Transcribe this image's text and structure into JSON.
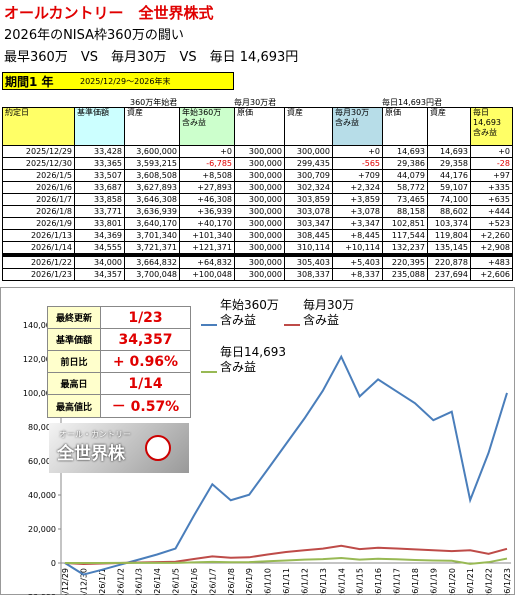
{
  "header": {
    "title": "オールカントリー　全世界株式",
    "subtitle": "2026年のNISA枠360万の闘い",
    "matchup": "最早360万　VS　毎月30万　VS　毎日 14,693円",
    "period_label": "期間1 年",
    "period": "2025/12/29～2026年末"
  },
  "table": {
    "groups": [
      "360万年始君",
      "毎月30万君",
      "毎日14,693円君"
    ],
    "columns": [
      "約定日",
      "基準価額",
      "資産",
      "年始360万\n含み益",
      "原価",
      "資産",
      "毎月30万\n含み益",
      "原価",
      "資産",
      "毎日\n14,693\n含み益"
    ],
    "rows": [
      [
        "2025/12/29",
        "33,428",
        "3,600,000",
        "+0",
        "300,000",
        "300,000",
        "+0",
        "14,693",
        "14,693",
        "+0"
      ],
      [
        "2025/12/30",
        "33,365",
        "3,593,215",
        "-6,785",
        "300,000",
        "299,435",
        "-565",
        "29,386",
        "29,358",
        "-28"
      ],
      [
        "2026/1/5",
        "33,507",
        "3,608,508",
        "+8,508",
        "300,000",
        "300,709",
        "+709",
        "44,079",
        "44,176",
        "+97"
      ],
      [
        "2026/1/6",
        "33,687",
        "3,627,893",
        "+27,893",
        "300,000",
        "302,324",
        "+2,324",
        "58,772",
        "59,107",
        "+335"
      ],
      [
        "2026/1/7",
        "33,858",
        "3,646,308",
        "+46,308",
        "300,000",
        "303,859",
        "+3,859",
        "73,465",
        "74,100",
        "+635"
      ],
      [
        "2026/1/8",
        "33,771",
        "3,636,939",
        "+36,939",
        "300,000",
        "303,078",
        "+3,078",
        "88,158",
        "88,602",
        "+444"
      ],
      [
        "2026/1/9",
        "33,801",
        "3,640,170",
        "+40,170",
        "300,000",
        "303,347",
        "+3,347",
        "102,851",
        "103,374",
        "+523"
      ],
      [
        "2026/1/13",
        "34,369",
        "3,701,340",
        "+101,340",
        "300,000",
        "308,445",
        "+8,445",
        "117,544",
        "119,804",
        "+2,260"
      ],
      [
        "2026/1/14",
        "34,555",
        "3,721,371",
        "+121,371",
        "300,000",
        "310,114",
        "+10,114",
        "132,237",
        "135,145",
        "+2,908"
      ],
      [
        "2026/1/22",
        "34,000",
        "3,664,832",
        "+64,832",
        "300,000",
        "305,403",
        "+5,403",
        "220,395",
        "220,878",
        "+483"
      ],
      [
        "2026/1/23",
        "34,357",
        "3,700,048",
        "+100,048",
        "300,000",
        "308,337",
        "+8,337",
        "235,088",
        "237,694",
        "+2,606"
      ]
    ]
  },
  "info": {
    "rows": [
      [
        "最終更新",
        "1/23"
      ],
      [
        "基準価額",
        "34,357"
      ],
      [
        "前日比",
        "+ 0.96%"
      ],
      [
        "最高日",
        "1/14"
      ],
      [
        "最高値比",
        "－ 0.57%"
      ]
    ]
  },
  "logo": {
    "line1": "オール・カントリー",
    "line2": "全世界株"
  },
  "chart_data": {
    "type": "line",
    "categories": [
      "2025/12/29",
      "2025/12/30",
      "2026/1/1",
      "2026/1/2",
      "2026/1/3",
      "2026/1/4",
      "2026/1/5",
      "2026/1/6",
      "2026/1/7",
      "2026/1/8",
      "2026/1/9",
      "2026/1/10",
      "2026/1/11",
      "2026/1/12",
      "2026/1/13",
      "2026/1/14",
      "2026/1/15",
      "2026/1/16",
      "2026/1/17",
      "2026/1/18",
      "2026/1/19",
      "2026/1/20",
      "2026/1/21",
      "2026/1/22",
      "2026/1/23"
    ],
    "series": [
      {
        "name": "年始360万\n含み益",
        "color": "#4a7ebb",
        "values": [
          0,
          -6785,
          -4000,
          -1000,
          2000,
          5000,
          8508,
          27893,
          46308,
          36939,
          40170,
          55000,
          70000,
          85000,
          101340,
          121371,
          98000,
          108000,
          101000,
          94000,
          84000,
          89000,
          37000,
          64832,
          100048
        ]
      },
      {
        "name": "毎月30万\n含み益",
        "color": "#be4b48",
        "values": [
          0,
          -565,
          -300,
          0,
          300,
          500,
          709,
          2324,
          3859,
          3078,
          3347,
          5000,
          6500,
          7500,
          8445,
          10114,
          8200,
          9000,
          8500,
          8000,
          7500,
          7000,
          7500,
          5403,
          8337
        ]
      },
      {
        "name": "毎日14,693\n含み益",
        "color": "#98b954",
        "values": [
          0,
          -28,
          0,
          50,
          80,
          90,
          97,
          335,
          635,
          444,
          523,
          1000,
          1500,
          2000,
          2260,
          2908,
          2000,
          2500,
          2200,
          1800,
          1500,
          1300,
          -500,
          483,
          2606
        ]
      }
    ],
    "ylim": [
      -20000,
      140000
    ],
    "yticks": [
      {
        "value": -20000,
        "label": "-20,000"
      },
      0,
      {
        "value": 20000,
        "label": "20,000"
      },
      {
        "value": 40000,
        "label": "40,000"
      },
      {
        "value": 60000,
        "label": "60,000"
      },
      {
        "value": 80000,
        "label": "80,000"
      },
      {
        "value": 100000,
        "label": "100,000"
      },
      {
        "value": 120000,
        "label": "120,000"
      },
      {
        "value": 140000,
        "label": "140,000"
      }
    ],
    "grid": false
  }
}
